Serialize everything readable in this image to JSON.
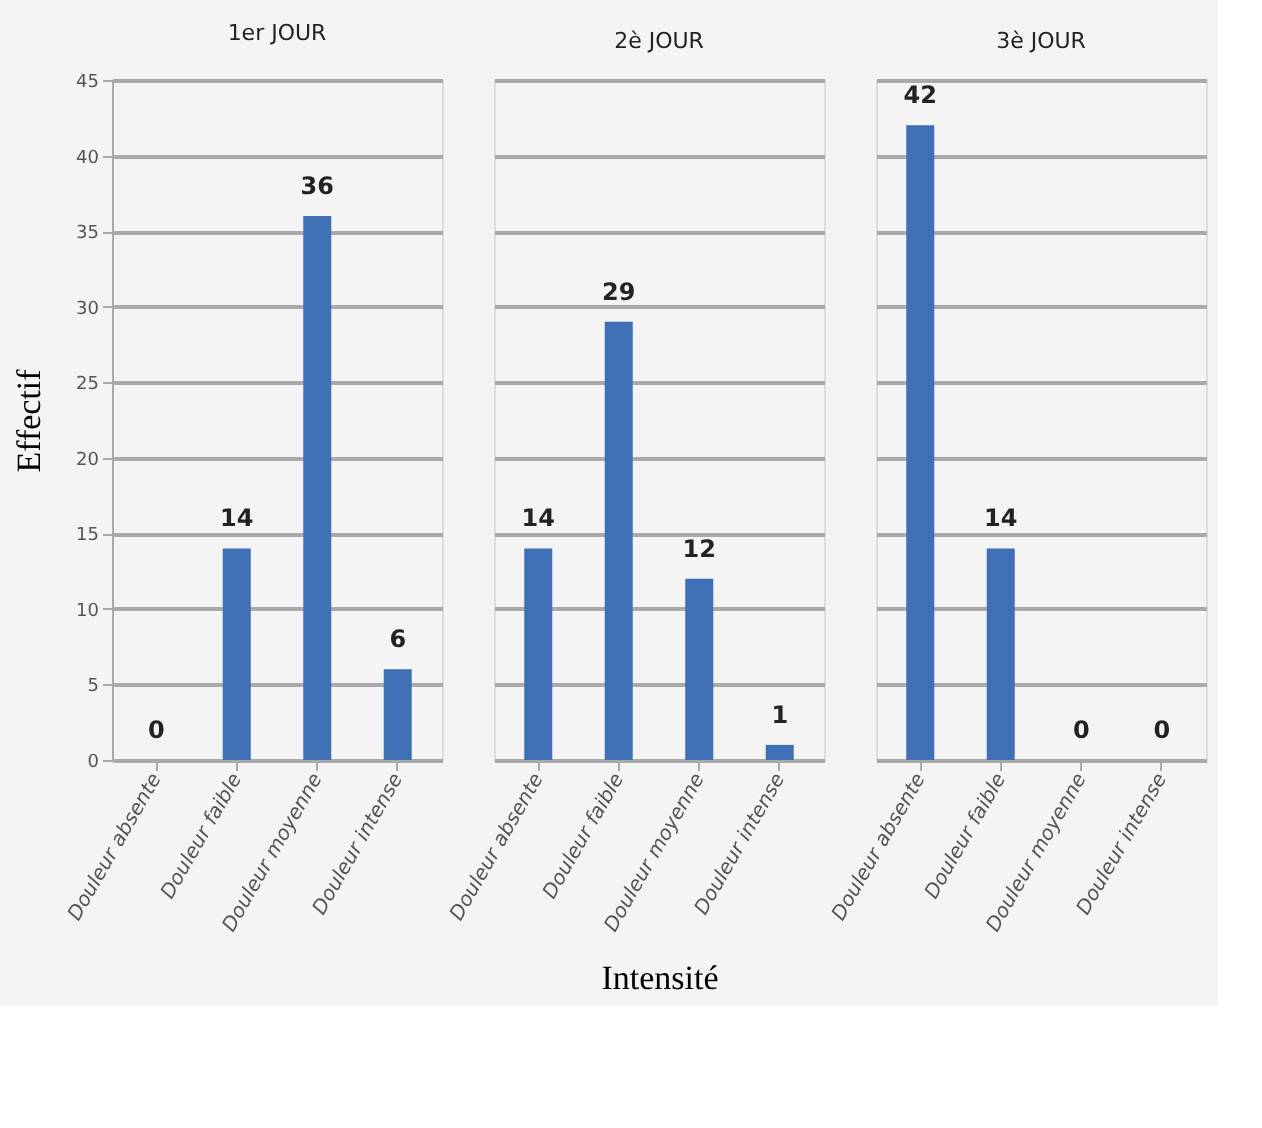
{
  "chart_data": [
    {
      "type": "bar",
      "title": "1er JOUR",
      "ylabel": "Effectif",
      "categories": [
        "Douleur absente",
        "Douleur faible",
        "Douleur moyenne",
        "Douleur intense"
      ],
      "values": [
        0,
        14,
        36,
        6
      ],
      "color": "#3f6fb5",
      "ylim": [
        0,
        45
      ],
      "yticks": [
        0,
        5,
        10,
        15,
        20,
        25,
        30,
        35,
        40,
        45
      ],
      "grid": "y",
      "data_labels": true
    },
    {
      "type": "bar",
      "title": "2è JOUR",
      "xlabel": "Intensité",
      "categories": [
        "Douleur absente",
        "Douleur faible",
        "Douleur moyenne",
        "Douleur intense"
      ],
      "values": [
        14,
        29,
        12,
        1
      ],
      "color": "#3f6fb5",
      "ylim": [
        0,
        45
      ],
      "yticks": [
        0,
        5,
        10,
        15,
        20,
        25,
        30,
        35,
        40,
        45
      ],
      "grid": "y",
      "data_labels": true,
      "tick_labels": "x"
    },
    {
      "type": "bar",
      "title": "3è JOUR",
      "categories": [
        "Douleur absente",
        "Douleur faible",
        "Douleur moyenne",
        "Douleur intense"
      ],
      "values": [
        42,
        14,
        0,
        0
      ],
      "color": "#3f6fb5",
      "ylim": [
        0,
        45
      ],
      "yticks": [
        0,
        5,
        10,
        15,
        20,
        25,
        30,
        35,
        40,
        45
      ],
      "grid": "y",
      "data_labels": true,
      "tick_labels": "x"
    }
  ]
}
